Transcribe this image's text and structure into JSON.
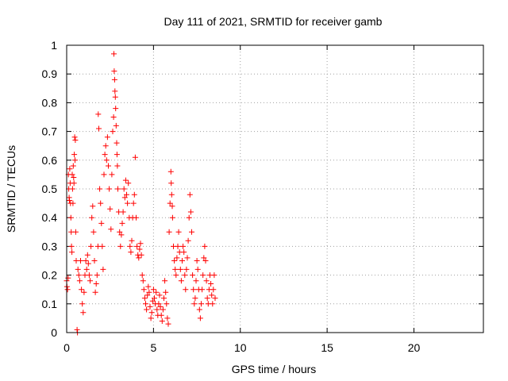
{
  "chart_data": {
    "type": "scatter",
    "title": "Day 111 of 2021, SRMTID for receiver gamb",
    "xlabel": "GPS time / hours",
    "ylabel": "SRMTID / TECUs",
    "xlim": [
      0,
      24
    ],
    "ylim": [
      0,
      1
    ],
    "xticks": [
      0,
      5,
      10,
      15,
      20
    ],
    "yticks": [
      0,
      0.1,
      0.2,
      0.3,
      0.4,
      0.5,
      0.6,
      0.7,
      0.8,
      0.9,
      1
    ],
    "ytick_labels": [
      "0",
      "0.1",
      "0.2",
      "0.3",
      "0.4",
      "0.5",
      "0.6",
      "0.7",
      "0.8",
      "0.9",
      "1"
    ],
    "grid": true,
    "marker": "+",
    "series": [
      {
        "name": "SRMTID",
        "color": "#ff0000",
        "points": [
          [
            0.0,
            0.18
          ],
          [
            0.02,
            0.16
          ],
          [
            0.05,
            0.15
          ],
          [
            0.08,
            0.19
          ],
          [
            0.1,
            0.55
          ],
          [
            0.12,
            0.5
          ],
          [
            0.14,
            0.47
          ],
          [
            0.16,
            0.46
          ],
          [
            0.18,
            0.57
          ],
          [
            0.2,
            0.52
          ],
          [
            0.22,
            0.45
          ],
          [
            0.24,
            0.4
          ],
          [
            0.26,
            0.35
          ],
          [
            0.28,
            0.3
          ],
          [
            0.3,
            0.28
          ],
          [
            0.32,
            0.55
          ],
          [
            0.34,
            0.5
          ],
          [
            0.36,
            0.45
          ],
          [
            0.38,
            0.58
          ],
          [
            0.4,
            0.54
          ],
          [
            0.42,
            0.52
          ],
          [
            0.44,
            0.62
          ],
          [
            0.46,
            0.68
          ],
          [
            0.48,
            0.6
          ],
          [
            0.5,
            0.67
          ],
          [
            0.52,
            0.35
          ],
          [
            0.55,
            0.25
          ],
          [
            0.6,
            0.01
          ],
          [
            0.62,
            0.0
          ],
          [
            0.65,
            0.22
          ],
          [
            0.7,
            0.2
          ],
          [
            0.75,
            0.18
          ],
          [
            0.8,
            0.25
          ],
          [
            0.85,
            0.15
          ],
          [
            0.9,
            0.1
          ],
          [
            0.95,
            0.07
          ],
          [
            1.0,
            0.14
          ],
          [
            1.05,
            0.2
          ],
          [
            1.1,
            0.25
          ],
          [
            1.15,
            0.22
          ],
          [
            1.2,
            0.27
          ],
          [
            1.25,
            0.24
          ],
          [
            1.3,
            0.2
          ],
          [
            1.35,
            0.18
          ],
          [
            1.4,
            0.3
          ],
          [
            1.45,
            0.4
          ],
          [
            1.5,
            0.44
          ],
          [
            1.55,
            0.35
          ],
          [
            1.6,
            0.25
          ],
          [
            1.65,
            0.14
          ],
          [
            1.7,
            0.17
          ],
          [
            1.75,
            0.2
          ],
          [
            1.8,
            0.3
          ],
          [
            1.82,
            0.76
          ],
          [
            1.85,
            0.71
          ],
          [
            1.9,
            0.5
          ],
          [
            1.95,
            0.45
          ],
          [
            2.0,
            0.38
          ],
          [
            2.05,
            0.3
          ],
          [
            2.1,
            0.22
          ],
          [
            2.15,
            0.55
          ],
          [
            2.2,
            0.62
          ],
          [
            2.25,
            0.65
          ],
          [
            2.3,
            0.6
          ],
          [
            2.35,
            0.68
          ],
          [
            2.4,
            0.58
          ],
          [
            2.45,
            0.5
          ],
          [
            2.5,
            0.43
          ],
          [
            2.55,
            0.36
          ],
          [
            2.6,
            0.55
          ],
          [
            2.65,
            0.7
          ],
          [
            2.7,
            0.75
          ],
          [
            2.72,
            0.97
          ],
          [
            2.74,
            0.91
          ],
          [
            2.76,
            0.88
          ],
          [
            2.78,
            0.84
          ],
          [
            2.8,
            0.82
          ],
          [
            2.82,
            0.78
          ],
          [
            2.85,
            0.72
          ],
          [
            2.88,
            0.66
          ],
          [
            2.9,
            0.62
          ],
          [
            2.92,
            0.58
          ],
          [
            2.95,
            0.5
          ],
          [
            3.0,
            0.42
          ],
          [
            3.05,
            0.35
          ],
          [
            3.1,
            0.3
          ],
          [
            3.15,
            0.34
          ],
          [
            3.2,
            0.38
          ],
          [
            3.25,
            0.42
          ],
          [
            3.3,
            0.5
          ],
          [
            3.35,
            0.47
          ],
          [
            3.4,
            0.53
          ],
          [
            3.45,
            0.48
          ],
          [
            3.5,
            0.45
          ],
          [
            3.55,
            0.52
          ],
          [
            3.6,
            0.4
          ],
          [
            3.65,
            0.3
          ],
          [
            3.7,
            0.28
          ],
          [
            3.75,
            0.32
          ],
          [
            3.8,
            0.4
          ],
          [
            3.85,
            0.45
          ],
          [
            3.9,
            0.48
          ],
          [
            3.95,
            0.61
          ],
          [
            4.0,
            0.4
          ],
          [
            4.05,
            0.3
          ],
          [
            4.1,
            0.27
          ],
          [
            4.15,
            0.26
          ],
          [
            4.2,
            0.29
          ],
          [
            4.25,
            0.31
          ],
          [
            4.3,
            0.27
          ],
          [
            4.35,
            0.2
          ],
          [
            4.4,
            0.18
          ],
          [
            4.45,
            0.15
          ],
          [
            4.5,
            0.12
          ],
          [
            4.55,
            0.1
          ],
          [
            4.6,
            0.08
          ],
          [
            4.65,
            0.13
          ],
          [
            4.7,
            0.16
          ],
          [
            4.75,
            0.14
          ],
          [
            4.8,
            0.09
          ],
          [
            4.85,
            0.05
          ],
          [
            4.9,
            0.07
          ],
          [
            4.95,
            0.11
          ],
          [
            5.0,
            0.15
          ],
          [
            5.05,
            0.12
          ],
          [
            5.1,
            0.1
          ],
          [
            5.15,
            0.14
          ],
          [
            5.2,
            0.08
          ],
          [
            5.25,
            0.06
          ],
          [
            5.3,
            0.1
          ],
          [
            5.35,
            0.13
          ],
          [
            5.4,
            0.09
          ],
          [
            5.45,
            0.06
          ],
          [
            5.5,
            0.04
          ],
          [
            5.55,
            0.08
          ],
          [
            5.6,
            0.12
          ],
          [
            5.65,
            0.18
          ],
          [
            5.7,
            0.14
          ],
          [
            5.75,
            0.1
          ],
          [
            5.8,
            0.05
          ],
          [
            5.85,
            0.03
          ],
          [
            5.9,
            0.35
          ],
          [
            5.95,
            0.45
          ],
          [
            6.0,
            0.56
          ],
          [
            6.02,
            0.52
          ],
          [
            6.05,
            0.48
          ],
          [
            6.08,
            0.44
          ],
          [
            6.1,
            0.4
          ],
          [
            6.15,
            0.3
          ],
          [
            6.2,
            0.25
          ],
          [
            6.25,
            0.22
          ],
          [
            6.3,
            0.2
          ],
          [
            6.35,
            0.26
          ],
          [
            6.4,
            0.3
          ],
          [
            6.45,
            0.35
          ],
          [
            6.5,
            0.28
          ],
          [
            6.55,
            0.22
          ],
          [
            6.6,
            0.18
          ],
          [
            6.65,
            0.25
          ],
          [
            6.7,
            0.3
          ],
          [
            6.75,
            0.28
          ],
          [
            6.8,
            0.2
          ],
          [
            6.85,
            0.15
          ],
          [
            6.9,
            0.22
          ],
          [
            6.95,
            0.26
          ],
          [
            7.0,
            0.32
          ],
          [
            7.05,
            0.4
          ],
          [
            7.1,
            0.48
          ],
          [
            7.15,
            0.42
          ],
          [
            7.2,
            0.35
          ],
          [
            7.25,
            0.2
          ],
          [
            7.3,
            0.15
          ],
          [
            7.35,
            0.1
          ],
          [
            7.4,
            0.12
          ],
          [
            7.45,
            0.18
          ],
          [
            7.5,
            0.25
          ],
          [
            7.55,
            0.22
          ],
          [
            7.6,
            0.15
          ],
          [
            7.65,
            0.08
          ],
          [
            7.7,
            0.05
          ],
          [
            7.75,
            0.1
          ],
          [
            7.8,
            0.15
          ],
          [
            7.85,
            0.2
          ],
          [
            7.9,
            0.26
          ],
          [
            7.95,
            0.3
          ],
          [
            8.0,
            0.25
          ],
          [
            8.05,
            0.18
          ],
          [
            8.1,
            0.12
          ],
          [
            8.15,
            0.1
          ],
          [
            8.2,
            0.15
          ],
          [
            8.25,
            0.2
          ],
          [
            8.3,
            0.17
          ],
          [
            8.35,
            0.13
          ],
          [
            8.4,
            0.1
          ],
          [
            8.45,
            0.15
          ],
          [
            8.5,
            0.2
          ],
          [
            8.55,
            0.12
          ]
        ]
      }
    ]
  }
}
